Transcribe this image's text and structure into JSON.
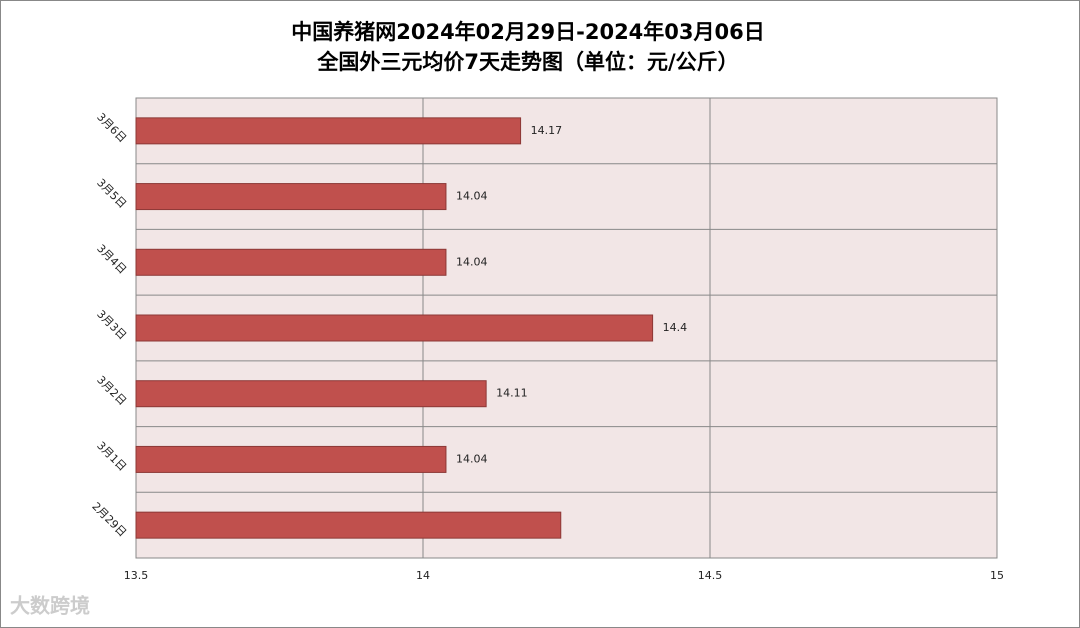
{
  "chart_data": {
    "type": "barh",
    "title": [
      "中国养猪网2024年02月29日-2024年03月06日",
      "全国外三元均价7天走势图（单位：元/公斤）"
    ],
    "categories": [
      "2月29日",
      "3月1日",
      "3月2日",
      "3月3日",
      "3月4日",
      "3月5日",
      "3月6日"
    ],
    "values": [
      14.24,
      14.04,
      14.11,
      14.4,
      14.04,
      14.04,
      14.17
    ],
    "value_labels": [
      null,
      "14.04",
      "14.11",
      "14.4",
      "14.04",
      "14.04",
      "14.17"
    ],
    "color": "#c0504d",
    "xlim": [
      13.5,
      15
    ],
    "xticks": [
      13.5,
      14,
      14.5,
      15
    ],
    "grid": true,
    "watermark": "大数跨境"
  }
}
